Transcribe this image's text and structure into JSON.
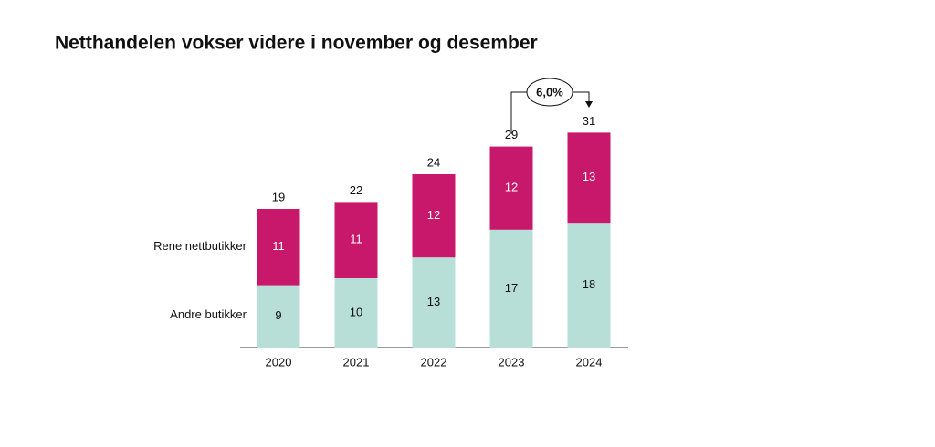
{
  "chart_data": {
    "type": "stacked_bar",
    "title": "Netthandelen vokser videre i november og desember",
    "categories": [
      "2020",
      "2021",
      "2022",
      "2023",
      "2024"
    ],
    "series": [
      {
        "name": "Andre butikker",
        "color": "#b7dfd8",
        "values": [
          9,
          10,
          13,
          17,
          18
        ]
      },
      {
        "name": "Rene nettbutikker",
        "color": "#c8186c",
        "values": [
          11,
          11,
          12,
          12,
          13
        ]
      }
    ],
    "total_labels": [
      19,
      22,
      24,
      29,
      31
    ],
    "annotation": "6,0%"
  }
}
